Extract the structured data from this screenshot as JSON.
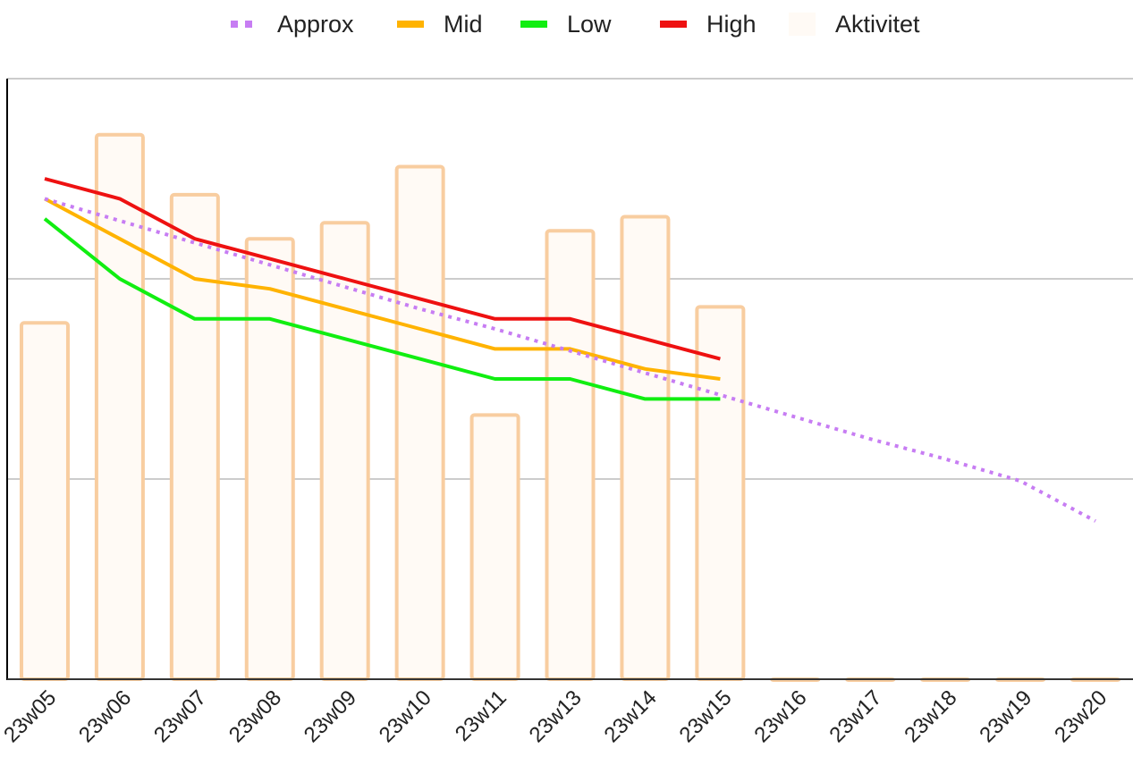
{
  "chart_data": {
    "type": "bar",
    "title": "",
    "xlabel": "",
    "ylabel": "",
    "ylim": [
      0,
      3
    ],
    "grid": true,
    "legend_position": "top",
    "categories": [
      "23w05",
      "23w06",
      "23w07",
      "23w08",
      "23w09",
      "23w10",
      "23w11",
      "23w13",
      "23w14",
      "23w15",
      "23w16",
      "23w17",
      "23w18",
      "23w19",
      "23w20"
    ],
    "series": [
      {
        "name": "Approx",
        "kind": "line",
        "style": "dotted",
        "color": "#c77df3",
        "values": [
          2.4,
          2.29,
          2.18,
          2.07,
          1.96,
          1.85,
          1.75,
          1.64,
          1.53,
          1.42,
          1.31,
          1.2,
          1.1,
          0.99,
          0.79
        ]
      },
      {
        "name": "Mid",
        "kind": "line",
        "color": "#ffb300",
        "values": [
          2.4,
          2.2,
          2.0,
          1.95,
          1.85,
          1.75,
          1.65,
          1.65,
          1.55,
          1.5,
          null,
          null,
          null,
          null,
          null
        ]
      },
      {
        "name": "Low",
        "kind": "line",
        "color": "#11ee11",
        "values": [
          2.3,
          2.0,
          1.8,
          1.8,
          1.7,
          1.6,
          1.5,
          1.5,
          1.4,
          1.4,
          null,
          null,
          null,
          null,
          null
        ]
      },
      {
        "name": "High",
        "kind": "line",
        "color": "#ee1111",
        "values": [
          2.5,
          2.4,
          2.2,
          2.1,
          2.0,
          1.9,
          1.8,
          1.8,
          1.7,
          1.6,
          null,
          null,
          null,
          null,
          null
        ]
      },
      {
        "name": "Aktivitet",
        "kind": "bar",
        "color": "#fffaf5",
        "stroke": "#f8cda0",
        "values": [
          1.78,
          2.72,
          2.42,
          2.2,
          2.28,
          2.56,
          1.32,
          2.24,
          2.31,
          1.86,
          0,
          0,
          0,
          0,
          0
        ]
      }
    ]
  }
}
